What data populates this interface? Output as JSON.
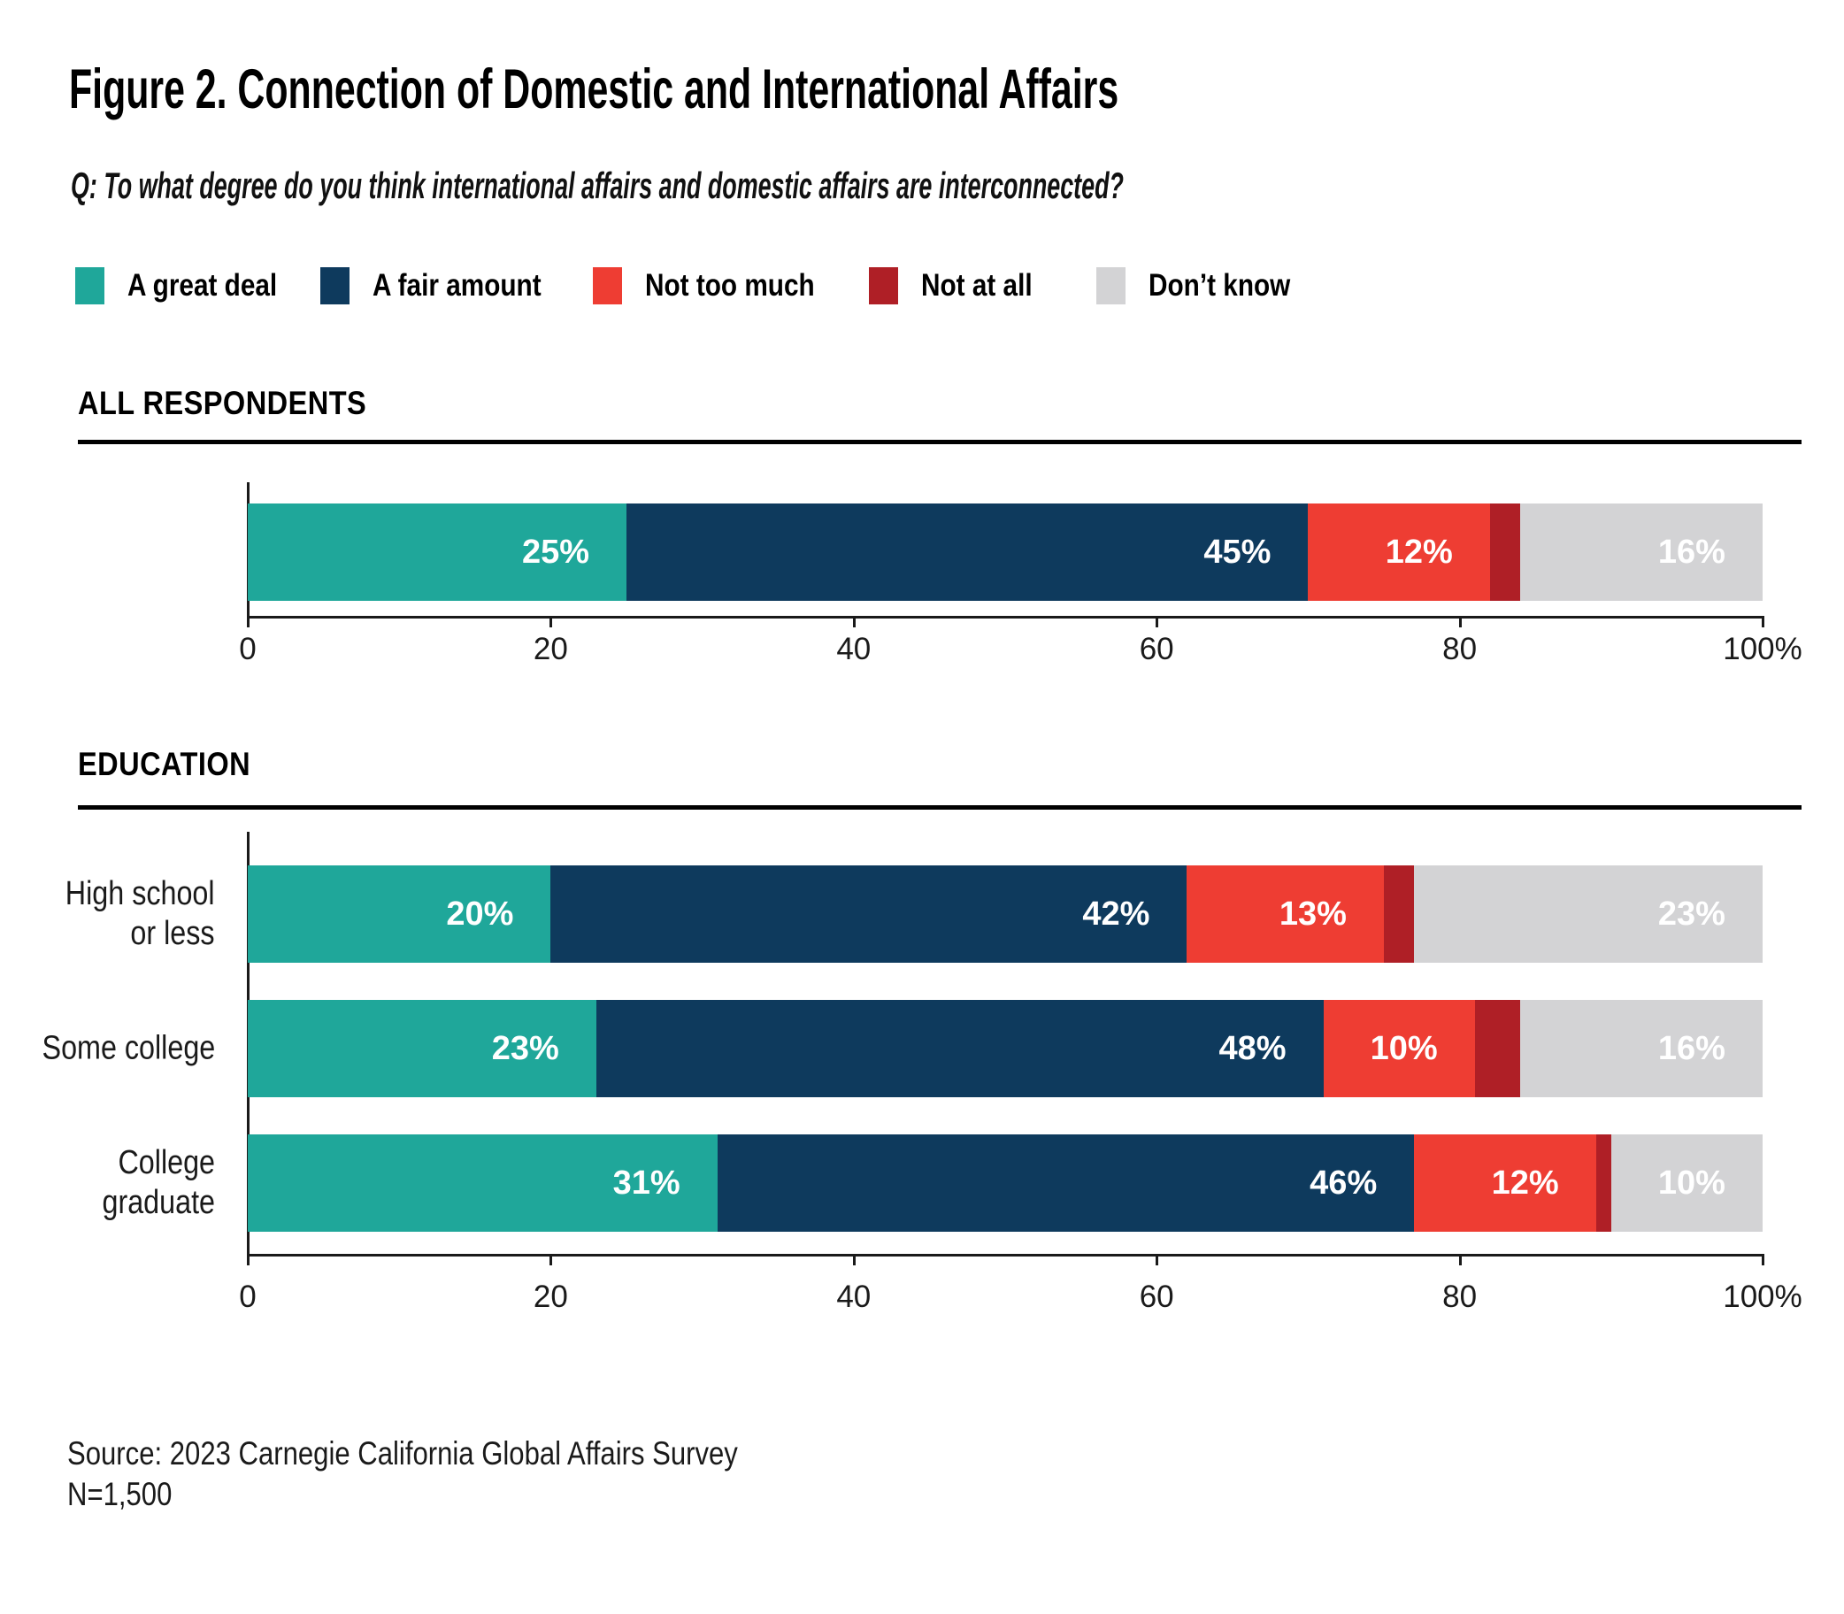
{
  "figure": {
    "title": "Figure 2. Connection of Domestic and International Affairs",
    "question": "Q: To what degree do you think international affairs and domestic affairs are interconnected?",
    "source": "Source: 2023 Carnegie California Global Affairs Survey",
    "n": "N=1,500"
  },
  "chart_data": {
    "type": "bar",
    "stacked": true,
    "orientation": "horizontal",
    "unit": "percent",
    "axis_range": [
      0,
      100
    ],
    "tick_values": [
      0,
      20,
      40,
      60,
      80,
      100
    ],
    "tick_labels": [
      "0",
      "20",
      "40",
      "60",
      "80",
      "100%"
    ],
    "grid": false,
    "legend_position": "top",
    "legend": [
      {
        "label": "A great deal",
        "color": "#1FA79A"
      },
      {
        "label": "A fair amount",
        "color": "#0E3A5D"
      },
      {
        "label": "Not too much",
        "color": "#EE3D33"
      },
      {
        "label": "Not at all",
        "color": "#AF1F26"
      },
      {
        "label": "Don’t know",
        "color": "#D3D3D5"
      }
    ],
    "value_label_color": "#FFFFFF",
    "sections": [
      {
        "heading": "ALL RESPONDENTS",
        "rows": [
          {
            "category": "",
            "category_lines": [],
            "values": [
              25,
              45,
              12,
              2,
              16
            ],
            "labels": [
              "25%",
              "45%",
              "12%",
              null,
              "16%"
            ]
          }
        ]
      },
      {
        "heading": "EDUCATION",
        "rows": [
          {
            "category": "High school or less",
            "category_lines": [
              "High school",
              "or less"
            ],
            "values": [
              20,
              42,
              13,
              2,
              23
            ],
            "labels": [
              "20%",
              "42%",
              "13%",
              null,
              "23%"
            ]
          },
          {
            "category": "Some college",
            "category_lines": [
              "Some college"
            ],
            "values": [
              23,
              48,
              10,
              3,
              16
            ],
            "labels": [
              "23%",
              "48%",
              "10%",
              null,
              "16%"
            ]
          },
          {
            "category": "College graduate",
            "category_lines": [
              "College",
              "graduate"
            ],
            "values": [
              31,
              46,
              12,
              1,
              10
            ],
            "labels": [
              "31%",
              "46%",
              "12%",
              null,
              "10%"
            ]
          }
        ]
      }
    ]
  }
}
